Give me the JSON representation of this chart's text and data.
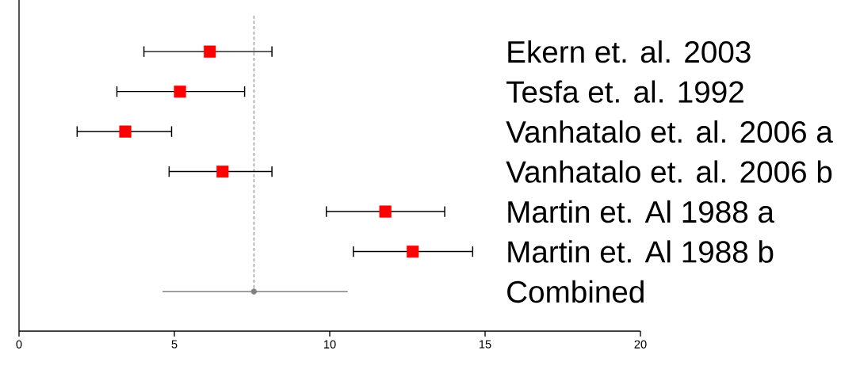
{
  "chart_data": {
    "type": "scatter",
    "orientation": "horizontal",
    "categories": [
      "Ekern et. al. 2003",
      "Tesfa et. al. 1992",
      "Vanhatalo et. al. 2006 a",
      "Vanhatalo et. al. 2006 b",
      "Martin et. Al 1988 a",
      "Martin et. Al 1988 b",
      "Combined"
    ],
    "series": [
      {
        "color": "#ff0000",
        "marker": "square",
        "values": [
          6.14,
          5.18,
          3.42,
          6.55,
          11.79,
          12.67,
          null
        ],
        "errors": [
          [
            4.02,
            8.14
          ],
          [
            3.15,
            7.26
          ],
          [
            1.87,
            4.91
          ],
          [
            4.83,
            8.14
          ],
          [
            9.89,
            13.7
          ],
          [
            10.76,
            14.6
          ],
          null
        ]
      },
      {
        "color": "#808080",
        "marker": "circle",
        "values": [
          null,
          null,
          null,
          null,
          null,
          null,
          7.56
        ],
        "errors": [
          null,
          null,
          null,
          null,
          null,
          null,
          [
            4.62,
            10.58
          ]
        ]
      }
    ],
    "xlim": [
      0,
      20
    ],
    "xticks": [
      0,
      5,
      10,
      15,
      20
    ],
    "ref_lines": [
      {
        "axis": "x",
        "value": 7.56,
        "color": "#808080",
        "line_style": "dashed"
      }
    ]
  }
}
